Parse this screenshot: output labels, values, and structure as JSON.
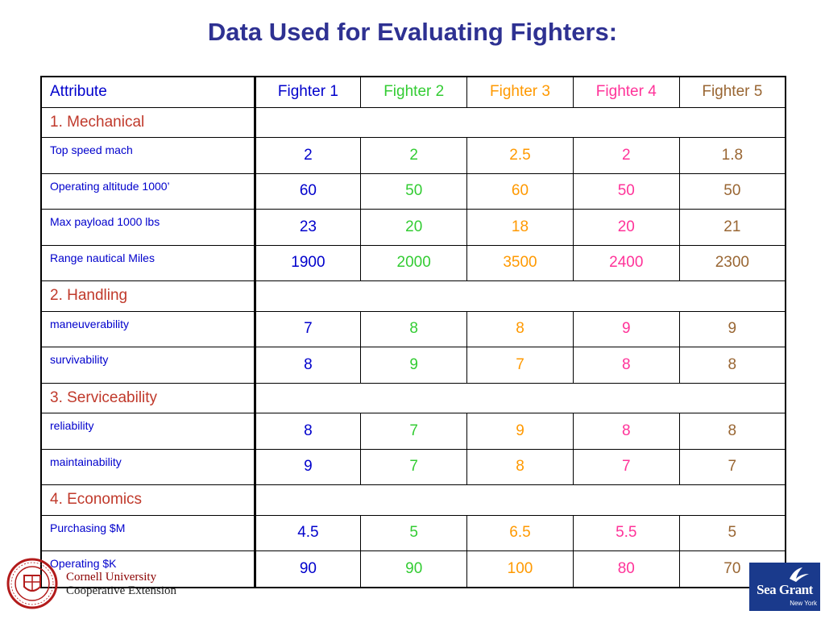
{
  "title": "Data Used for Evaluating Fighters:",
  "table": {
    "header": {
      "attribute": "Attribute",
      "fighters": [
        "Fighter 1",
        "Fighter 2",
        "Fighter 3",
        "Fighter 4",
        "Fighter 5"
      ]
    },
    "sections": [
      {
        "label": "1. Mechanical",
        "rows": [
          {
            "attribute": "Top speed mach",
            "values": [
              "2",
              "2",
              "2.5",
              "2",
              "1.8"
            ]
          },
          {
            "attribute": "Operating altitude 1000’",
            "values": [
              "60",
              "50",
              "60",
              "50",
              "50"
            ]
          },
          {
            "attribute": "Max payload 1000 lbs",
            "values": [
              "23",
              "20",
              "18",
              "20",
              "21"
            ]
          },
          {
            "attribute": "Range  nautical Miles",
            "values": [
              "1900",
              "2000",
              "3500",
              "2400",
              "2300"
            ]
          }
        ]
      },
      {
        "label": "2. Handling",
        "rows": [
          {
            "attribute": "maneuverability",
            "values": [
              "7",
              "8",
              "8",
              "9",
              "9"
            ]
          },
          {
            "attribute": "survivability",
            "values": [
              "8",
              "9",
              "7",
              "8",
              "8"
            ]
          }
        ]
      },
      {
        "label": "3. Serviceability",
        "rows": [
          {
            "attribute": "reliability",
            "values": [
              "8",
              "7",
              "9",
              "8",
              "8"
            ]
          },
          {
            "attribute": "maintainability",
            "values": [
              "9",
              "7",
              "8",
              "7",
              "7"
            ]
          }
        ]
      },
      {
        "label": "4. Economics",
        "rows": [
          {
            "attribute": "Purchasing $M",
            "values": [
              "4.5",
              "5",
              "6.5",
              "5.5",
              "5"
            ]
          },
          {
            "attribute": "Operating $K",
            "values": [
              "90",
              "90",
              "100",
              "80",
              "70"
            ]
          }
        ]
      }
    ]
  },
  "colors": {
    "title": "#2e3192",
    "attribute": "#0000cc",
    "section": "#c0392b",
    "fighter_1": "#0000cc",
    "fighter_2": "#33cc33",
    "fighter_3": "#ff9900",
    "fighter_4": "#ff3399",
    "fighter_5": "#996633"
  },
  "footer": {
    "left_logo": {
      "icon": "cornell-seal-icon",
      "line1": "Cornell University",
      "line2": "Cooperative Extension"
    },
    "right_logo": {
      "icon": "sea-grant-logo-icon",
      "name": "Sea Grant",
      "sub": "New York"
    }
  }
}
